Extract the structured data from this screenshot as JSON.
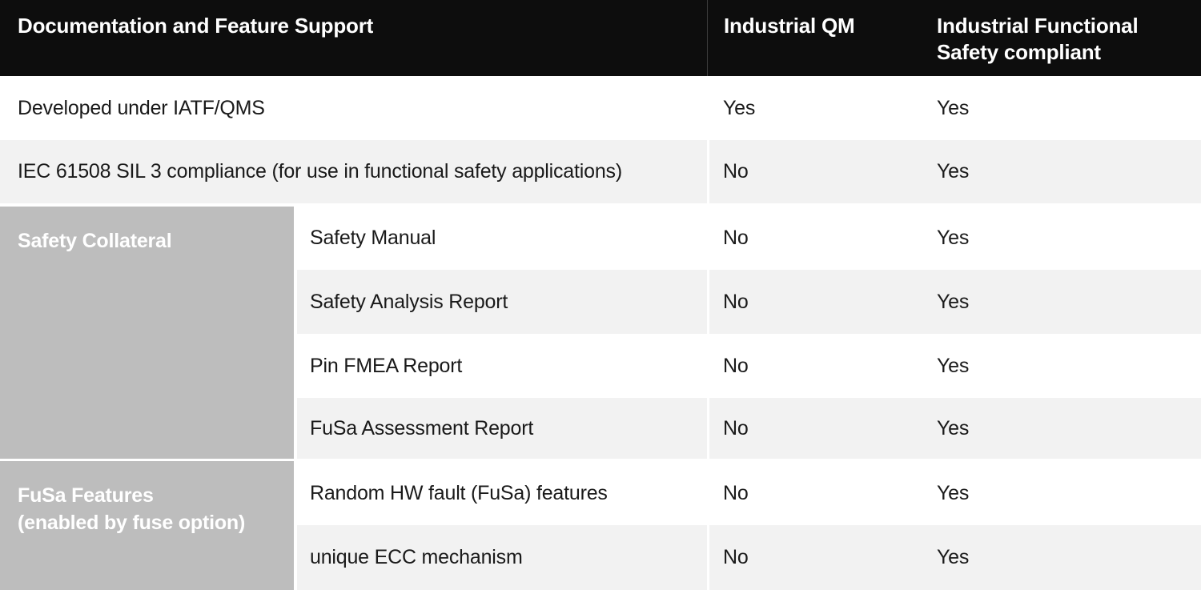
{
  "colors": {
    "header_bg": "#0d0d0d",
    "header_text": "#ffffff",
    "row_bg": "#ffffff",
    "row_alt_bg": "#f2f2f2",
    "group_label_bg": "#bdbdbd",
    "group_label_text": "#ffffff",
    "body_text": "#1a1a1a",
    "header_divider": "#3c3c3c"
  },
  "table": {
    "header": {
      "feature_col": "Documentation and Feature Support",
      "qm_col": "Industrial QM",
      "fusa_col": "Industrial Functional Safety compliant"
    },
    "rows": [
      {
        "feature": "Developed under IATF/QMS",
        "qm": "Yes",
        "fusa": "Yes"
      },
      {
        "feature": "IEC 61508 SIL 3 compliance (for use in functional safety applications)",
        "qm": "No",
        "fusa": "Yes"
      }
    ],
    "groups": [
      {
        "label_lines": [
          "Safety Collateral"
        ],
        "rows": [
          {
            "feature": "Safety Manual",
            "qm": "No",
            "fusa": "Yes"
          },
          {
            "feature": "Safety Analysis Report",
            "qm": "No",
            "fusa": "Yes"
          },
          {
            "feature": "Pin FMEA Report",
            "qm": "No",
            "fusa": "Yes"
          },
          {
            "feature": "FuSa Assessment Report",
            "qm": "No",
            "fusa": "Yes"
          }
        ]
      },
      {
        "label_lines": [
          "FuSa Features",
          "(enabled by fuse option)"
        ],
        "rows": [
          {
            "feature": "Random HW fault (FuSa) features",
            "qm": "No",
            "fusa": "Yes"
          },
          {
            "feature": "unique ECC mechanism",
            "qm": "No",
            "fusa": "Yes"
          }
        ]
      }
    ]
  }
}
